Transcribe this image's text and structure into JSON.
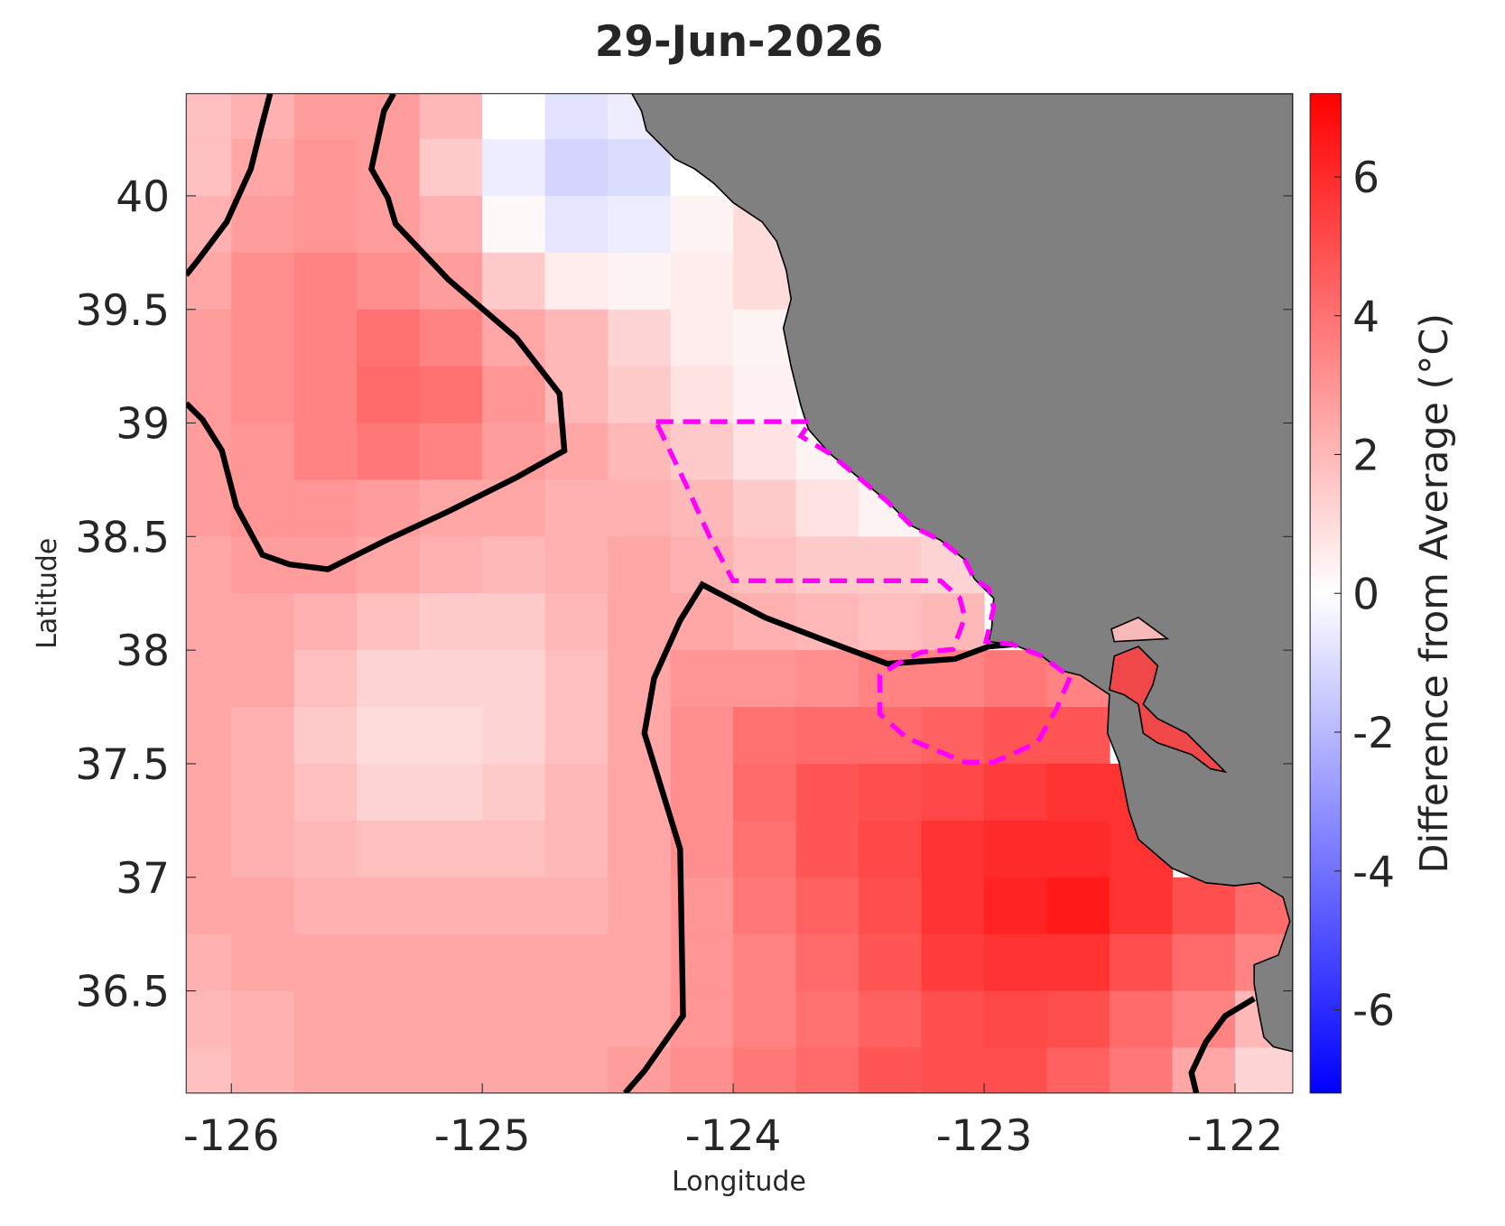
{
  "chart_data": {
    "type": "heatmap",
    "title": "29-Jun-2026",
    "x_label": "Longitude",
    "y_label": "Latitude",
    "colorbar_label": "Difference from Average (°C)",
    "x": [
      -126.125,
      -125.875,
      -125.625,
      -125.375,
      -125.125,
      -124.875,
      -124.625,
      -124.375,
      -124.125,
      -123.875,
      -123.625,
      -123.375,
      -123.125,
      -122.875,
      -122.625,
      -122.375,
      -122.125,
      -121.875
    ],
    "y": [
      40.375,
      40.125,
      39.875,
      39.625,
      39.375,
      39.125,
      38.875,
      38.625,
      38.375,
      38.125,
      37.875,
      37.625,
      37.375,
      37.125,
      36.875,
      36.625,
      36.375,
      36.125
    ],
    "values": [
      [
        1.8,
        2.2,
        2.8,
        2.8,
        2,
        0,
        -0.8,
        -0.5,
        null,
        null,
        null,
        null,
        null,
        null,
        null,
        null,
        null,
        null
      ],
      [
        1.8,
        2.5,
        3,
        2.8,
        1.5,
        -0.5,
        -1.2,
        -1,
        0,
        null,
        null,
        null,
        null,
        null,
        null,
        null,
        null,
        null
      ],
      [
        2.2,
        2.8,
        3,
        2.8,
        2.2,
        0.2,
        -0.7,
        -0.5,
        0.3,
        1,
        null,
        null,
        null,
        null,
        null,
        null,
        null,
        null
      ],
      [
        2.5,
        3.2,
        3.5,
        3.2,
        2.8,
        1.5,
        0.5,
        0.3,
        0.5,
        1,
        null,
        null,
        null,
        null,
        null,
        null,
        null,
        null
      ],
      [
        2.8,
        3.2,
        3.5,
        4,
        3.5,
        2.5,
        2,
        1.2,
        0.5,
        0.3,
        null,
        null,
        null,
        null,
        null,
        null,
        null,
        null
      ],
      [
        2.8,
        3.2,
        3.5,
        4.2,
        4,
        3,
        2,
        1.5,
        0.8,
        0.4,
        null,
        null,
        null,
        null,
        null,
        null,
        null,
        null
      ],
      [
        2.8,
        3,
        3.5,
        3.8,
        3.5,
        2.8,
        2.5,
        2,
        1.5,
        0.8,
        0.3,
        0.5,
        null,
        null,
        null,
        null,
        null,
        null
      ],
      [
        2.8,
        3,
        3,
        2.8,
        2.5,
        2.5,
        2.2,
        2.2,
        2,
        1.5,
        0.8,
        0.3,
        1,
        null,
        null,
        null,
        null,
        null
      ],
      [
        2.5,
        2.8,
        2.8,
        2.5,
        2.2,
        2,
        2.2,
        2.5,
        2.2,
        1.8,
        1.5,
        1.5,
        1.2,
        null,
        null,
        null,
        null,
        null
      ],
      [
        2.5,
        2.5,
        2.2,
        1.8,
        1.5,
        1.5,
        2,
        2.5,
        2.5,
        2.2,
        2,
        1.8,
        2,
        null,
        null,
        null,
        null,
        null
      ],
      [
        2.5,
        2.5,
        1.8,
        1.2,
        1.2,
        1.2,
        1.8,
        2.5,
        3,
        3,
        3.2,
        3.5,
        3.5,
        3.8,
        3.5,
        null,
        null,
        null
      ],
      [
        2.5,
        2.2,
        1.5,
        1,
        1,
        1.2,
        1.8,
        2.5,
        3.2,
        4,
        4.2,
        4.2,
        4.5,
        4.8,
        4.8,
        null,
        null,
        null
      ],
      [
        2.5,
        2.2,
        1.8,
        1.2,
        1.2,
        1.5,
        2,
        2.5,
        3.2,
        4.2,
        4.8,
        5,
        5.2,
        5.5,
        5.8,
        5.8,
        null,
        null
      ],
      [
        2.5,
        2.2,
        2,
        1.8,
        1.8,
        1.8,
        2,
        2.5,
        3.2,
        4,
        4.8,
        5.2,
        5.8,
        6,
        6,
        5.8,
        null,
        null
      ],
      [
        2.5,
        2.5,
        2.2,
        2.2,
        2.2,
        2.2,
        2.2,
        2.5,
        3,
        3.8,
        4.5,
        5,
        5.8,
        6.2,
        6.5,
        5.8,
        5,
        4.2
      ],
      [
        2.2,
        2.5,
        2.5,
        2.5,
        2.5,
        2.5,
        2.5,
        2.5,
        3,
        3.5,
        4.2,
        4.8,
        5.5,
        5.8,
        5.8,
        5,
        4.2,
        3.5
      ],
      [
        2,
        2.2,
        2.5,
        2.5,
        2.5,
        2.5,
        2.5,
        2.5,
        3,
        3.5,
        4,
        4.5,
        5,
        5.2,
        5,
        4.2,
        3.5,
        2
      ],
      [
        1.8,
        2.2,
        2.5,
        2.5,
        2.5,
        2.5,
        2.5,
        2.8,
        3.2,
        3.8,
        4.2,
        4.8,
        5,
        5,
        4.5,
        3.8,
        2.5,
        1.2
      ]
    ],
    "xlim": [
      -126.18,
      -121.77
    ],
    "ylim": [
      36.05,
      40.45
    ],
    "xticks": [
      -126,
      -125,
      -124,
      -123,
      -122
    ],
    "yticks": [
      36.5,
      37,
      37.5,
      38,
      38.5,
      39,
      39.5,
      40
    ],
    "clim": [
      -7.2,
      7.2
    ],
    "cticks": [
      -6,
      -4,
      -2,
      0,
      2,
      4,
      6
    ],
    "colormap": [
      "#0000ff",
      "#ffffff",
      "#ff0000"
    ],
    "land_color": "#808080"
  }
}
